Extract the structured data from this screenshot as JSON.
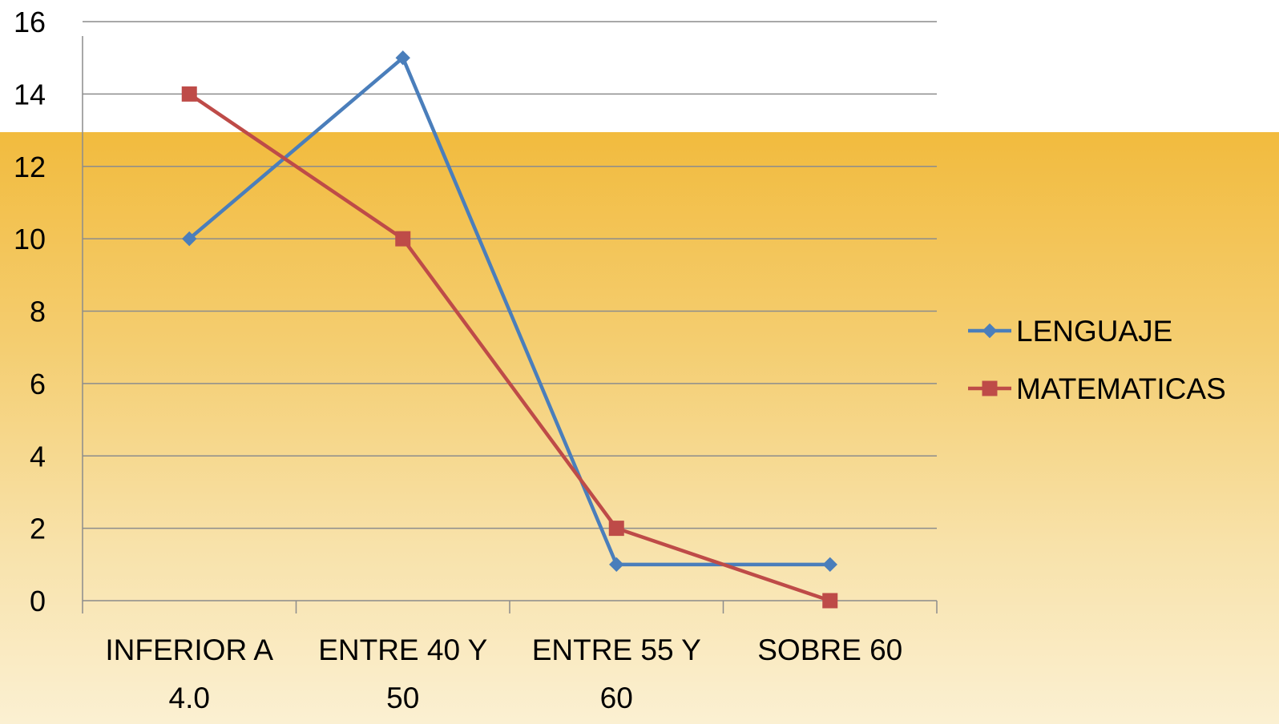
{
  "chart_data": {
    "type": "line",
    "categories": [
      [
        "INFERIOR A",
        "4.0"
      ],
      [
        "ENTRE 40 Y",
        "50"
      ],
      [
        "ENTRE 55 Y",
        "60"
      ],
      [
        "SOBRE 60"
      ]
    ],
    "series": [
      {
        "name": "LENGUAJE",
        "values": [
          10,
          15,
          1,
          1
        ],
        "color": "#4a7ebb",
        "marker": "diamond"
      },
      {
        "name": "MATEMATICAS",
        "values": [
          14,
          10,
          2,
          0
        ],
        "color": "#be4b48",
        "marker": "square"
      }
    ],
    "ylim": [
      0,
      16
    ],
    "yticks": [
      0,
      2,
      4,
      6,
      8,
      10,
      12,
      14,
      16
    ],
    "grid": true,
    "legend": "right"
  }
}
